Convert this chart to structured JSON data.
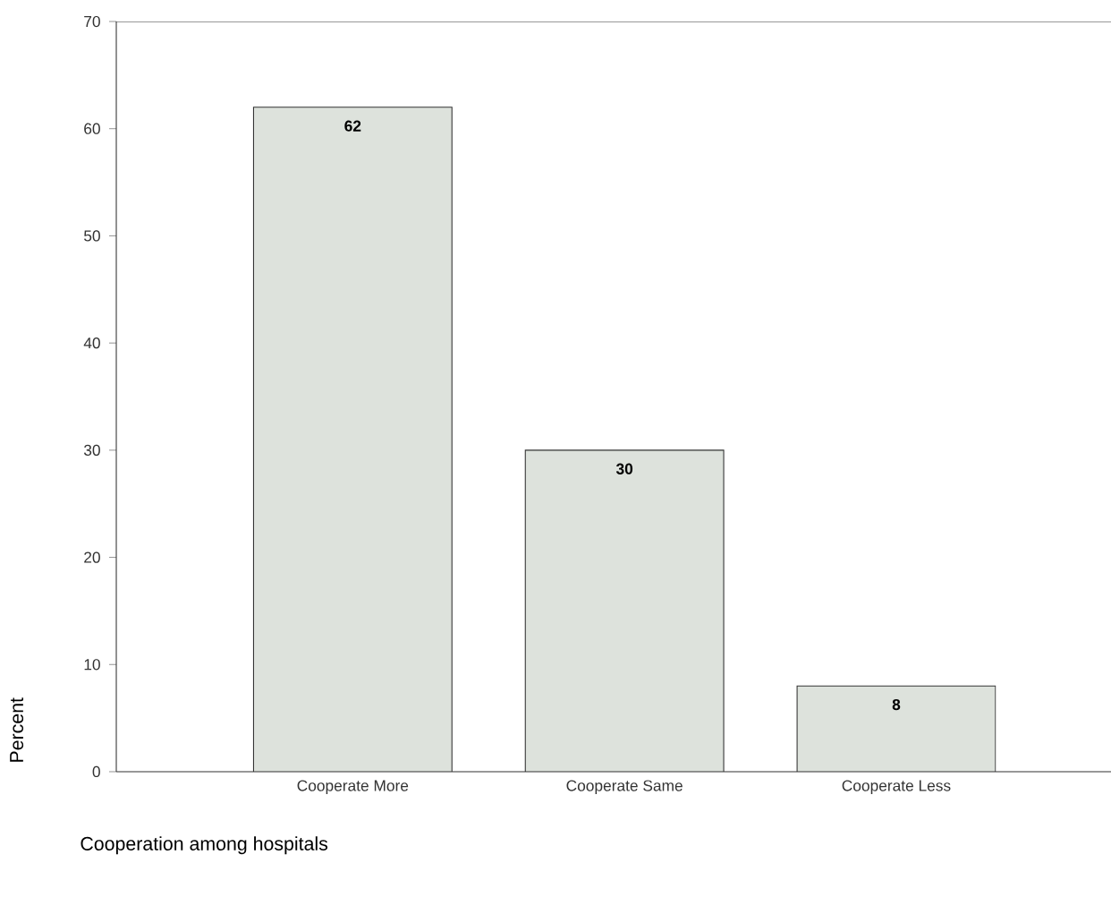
{
  "chart_data": {
    "type": "bar",
    "xlabel": "Cooperation among hospitals",
    "ylabel": "Percent",
    "categories": [
      "Cooperate More",
      "Cooperate Same",
      "Cooperate Less"
    ],
    "values": [
      62,
      30,
      8
    ],
    "color": "#dde2dc",
    "ylim": [
      0,
      70
    ],
    "yticks": [
      0,
      10,
      20,
      30,
      40,
      50,
      60,
      70
    ],
    "data_labels": true
  }
}
